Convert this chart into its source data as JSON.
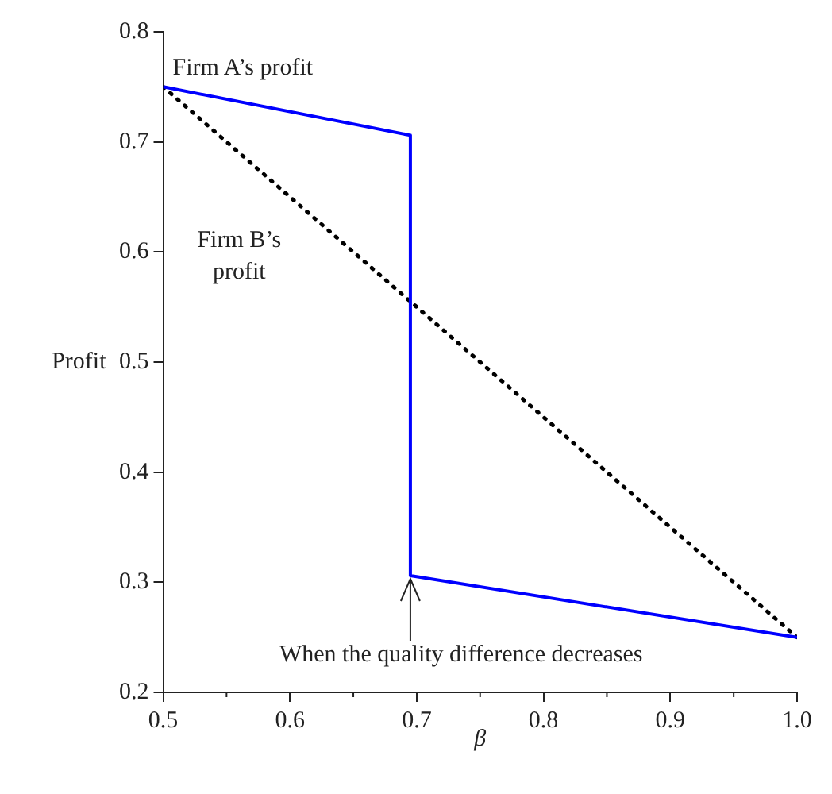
{
  "chart_data": {
    "type": "line",
    "xlabel": "β",
    "ylabel": "Profit",
    "xlim": [
      0.5,
      1.0
    ],
    "ylim": [
      0.2,
      0.8
    ],
    "xticks": [
      0.5,
      0.6,
      0.7,
      0.8,
      0.9,
      {
        "value": 1.0,
        "label": "1.0"
      }
    ],
    "yticks": [
      0.2,
      0.3,
      0.4,
      0.5,
      0.6,
      0.7,
      0.8
    ],
    "grid": false,
    "legend": false,
    "marker": "none",
    "series": [
      {
        "name": "Firm A’s profit",
        "color": "#0000ff",
        "line_style": "solid",
        "x": [
          0.5,
          0.695,
          0.695,
          1.0
        ],
        "values": [
          0.75,
          0.706,
          0.306,
          0.25
        ]
      },
      {
        "name": "Firm B’s profit",
        "color": "#000000",
        "line_style": "dotted",
        "x": [
          0.5,
          1.0
        ],
        "values": [
          0.75,
          0.25
        ]
      }
    ],
    "annotations": [
      {
        "text": "When the quality difference decreases",
        "x": 0.695,
        "y": 0.306
      }
    ]
  }
}
